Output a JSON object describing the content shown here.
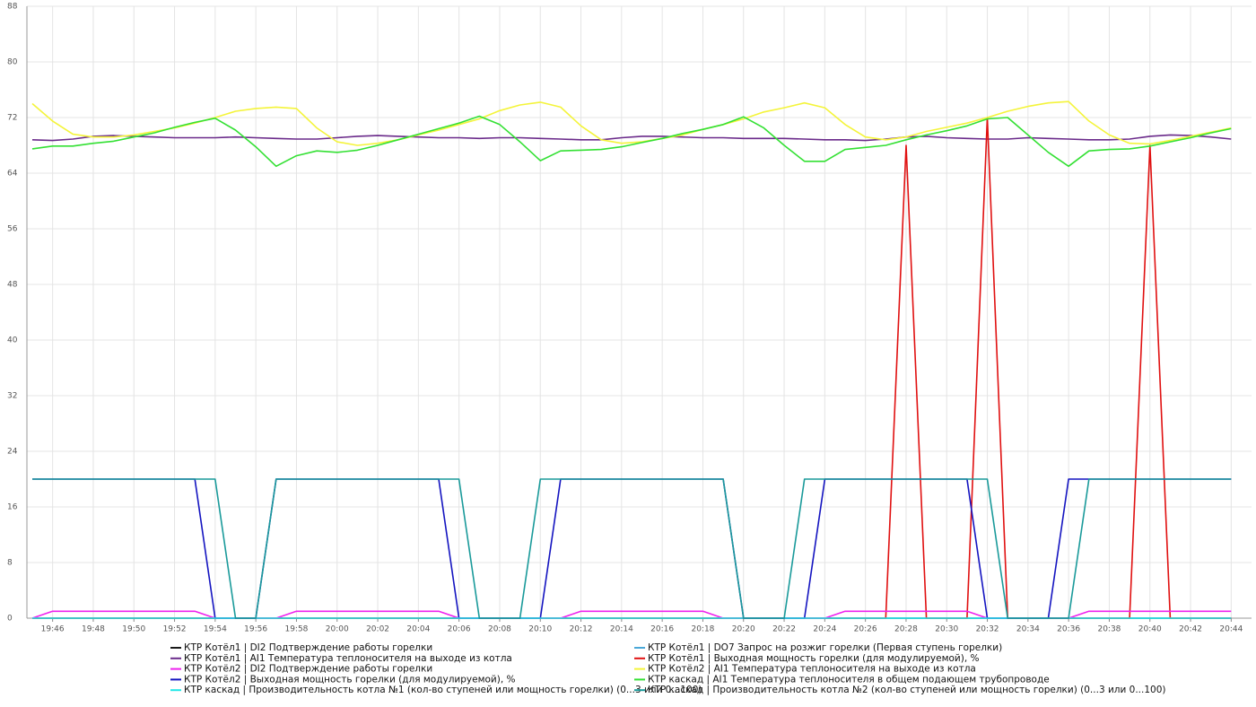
{
  "chart_data": {
    "type": "line",
    "x": [
      "19:45",
      "19:46",
      "19:47",
      "19:48",
      "19:49",
      "19:50",
      "19:51",
      "19:52",
      "19:53",
      "19:54",
      "19:55",
      "19:56",
      "19:57",
      "19:58",
      "19:59",
      "20:00",
      "20:01",
      "20:02",
      "20:03",
      "20:04",
      "20:05",
      "20:06",
      "20:07",
      "20:08",
      "20:09",
      "20:10",
      "20:11",
      "20:12",
      "20:13",
      "20:14",
      "20:15",
      "20:16",
      "20:17",
      "20:18",
      "20:19",
      "20:20",
      "20:21",
      "20:22",
      "20:23",
      "20:24",
      "20:25",
      "20:26",
      "20:27",
      "20:28",
      "20:29",
      "20:30",
      "20:31",
      "20:32",
      "20:33",
      "20:34",
      "20:35",
      "20:36",
      "20:37",
      "20:38",
      "20:39",
      "20:40",
      "20:41",
      "20:42",
      "20:43",
      "20:44"
    ],
    "xlim": [
      "19:45",
      "20:45"
    ],
    "xticks": [
      "19:46",
      "19:48",
      "19:50",
      "19:52",
      "19:54",
      "19:56",
      "19:58",
      "20:00",
      "20:02",
      "20:04",
      "20:06",
      "20:08",
      "20:10",
      "20:12",
      "20:14",
      "20:16",
      "20:18",
      "20:20",
      "20:22",
      "20:24",
      "20:26",
      "20:28",
      "20:30",
      "20:32",
      "20:34",
      "20:36",
      "20:38",
      "20:40",
      "20:42",
      "20:44"
    ],
    "ylim": [
      0,
      88
    ],
    "yticks": [
      0,
      8,
      16,
      24,
      32,
      40,
      48,
      56,
      64,
      72,
      80,
      88
    ],
    "grid": true,
    "legend": "bottom",
    "series": [
      {
        "name": "КТР Котёл1 | DI2 Подтверждение работы горелки",
        "color": "#1a1a1a",
        "values": [
          0,
          0,
          0,
          0,
          0,
          0,
          0,
          0,
          0,
          0,
          0,
          0,
          0,
          0,
          0,
          0,
          0,
          0,
          0,
          0,
          0,
          0,
          0,
          0,
          0,
          0,
          0,
          0,
          0,
          0,
          0,
          0,
          0,
          0,
          0,
          0,
          0,
          0,
          0,
          0,
          0,
          0,
          0,
          0,
          0,
          0,
          0,
          0,
          0,
          0,
          0,
          0,
          0,
          0,
          0,
          0,
          0,
          0,
          0,
          0
        ]
      },
      {
        "name": "КТР Котёл1 | DO7 Запрос на розжиг горелки (Первая ступень горелки)",
        "color": "#4aa8d8",
        "values": [
          0,
          0,
          0,
          0,
          0,
          0,
          0,
          0,
          0,
          0,
          0,
          0,
          0,
          0,
          0,
          0,
          0,
          0,
          0,
          0,
          0,
          0,
          0,
          0,
          0,
          0,
          0,
          0,
          0,
          0,
          0,
          0,
          0,
          0,
          0,
          0,
          0,
          0,
          0,
          0,
          0,
          0,
          0,
          0,
          0,
          0,
          0,
          0,
          0,
          0,
          0,
          0,
          0,
          0,
          0,
          0,
          0,
          0,
          0,
          0
        ]
      },
      {
        "name": "КТР Котёл1 | AI1 Температура теплоносителя на выходе из котла",
        "color": "#6a2a8a",
        "values": [
          68.8,
          68.7,
          68.9,
          69.3,
          69.4,
          69.3,
          69.2,
          69.1,
          69.1,
          69.1,
          69.2,
          69.1,
          69,
          68.9,
          68.9,
          69.1,
          69.3,
          69.4,
          69.3,
          69.2,
          69.1,
          69.1,
          69,
          69.1,
          69.1,
          69,
          68.9,
          68.8,
          68.8,
          69.1,
          69.3,
          69.3,
          69.2,
          69.1,
          69.1,
          69,
          69,
          69,
          68.9,
          68.8,
          68.8,
          68.7,
          68.9,
          69.2,
          69.3,
          69.1,
          69,
          68.9,
          68.9,
          69.1,
          69,
          68.9,
          68.8,
          68.8,
          68.9,
          69.3,
          69.5,
          69.4,
          69.2,
          68.9
        ]
      },
      {
        "name": "КТР Котёл1 | Выходная мощность горелки (для модулируемой), %",
        "color": "#e01010",
        "values": [
          0,
          0,
          0,
          0,
          0,
          0,
          0,
          0,
          0,
          0,
          0,
          0,
          0,
          0,
          0,
          0,
          0,
          0,
          0,
          0,
          0,
          0,
          0,
          0,
          0,
          0,
          0,
          0,
          0,
          0,
          0,
          0,
          0,
          0,
          0,
          0,
          0,
          0,
          0,
          0,
          0,
          0,
          0,
          68,
          0,
          0,
          0,
          72,
          0,
          0,
          0,
          0,
          0,
          0,
          0,
          68,
          0,
          0,
          0,
          0
        ]
      },
      {
        "name": "КТР Котёл2 | DI2 Подтверждение работы горелки",
        "color": "#ee22ee",
        "values": [
          0,
          1,
          1,
          1,
          1,
          1,
          1,
          1,
          1,
          0,
          0,
          0,
          0,
          1,
          1,
          1,
          1,
          1,
          1,
          1,
          1,
          0,
          0,
          0,
          0,
          0,
          0,
          1,
          1,
          1,
          1,
          1,
          1,
          1,
          0,
          0,
          0,
          0,
          0,
          0,
          1,
          1,
          1,
          1,
          1,
          1,
          1,
          0,
          0,
          0,
          0,
          0,
          1,
          1,
          1,
          1,
          1,
          1,
          1,
          1
        ]
      },
      {
        "name": "КТР Котёл2 | AI1 Температура теплоносителя на выходе из котла",
        "color": "#f4f43a",
        "values": [
          74,
          71.5,
          69.6,
          69.2,
          69.2,
          69.5,
          70,
          70.5,
          71.2,
          72,
          72.9,
          73.3,
          73.5,
          73.3,
          70.5,
          68.5,
          68,
          68.3,
          68.8,
          69.5,
          70.2,
          71,
          71.8,
          73,
          73.8,
          74.2,
          73.5,
          70.8,
          68.8,
          68.3,
          68.5,
          69,
          69.5,
          70.3,
          71,
          71.8,
          72.8,
          73.4,
          74.1,
          73.4,
          71,
          69.2,
          68.8,
          69.2,
          70,
          70.6,
          71.2,
          72,
          72.9,
          73.6,
          74.1,
          74.3,
          71.5,
          69.5,
          68.3,
          68.2,
          68.7,
          69.3,
          69.9,
          70.5
        ]
      },
      {
        "name": "КТР Котёл2 | Выходная мощность горелки (для модулируемой), %",
        "color": "#1414c0",
        "values": [
          20,
          20,
          20,
          20,
          20,
          20,
          20,
          20,
          20,
          0,
          0,
          0,
          20,
          20,
          20,
          20,
          20,
          20,
          20,
          20,
          20,
          0,
          0,
          0,
          0,
          0,
          20,
          20,
          20,
          20,
          20,
          20,
          20,
          20,
          20,
          0,
          0,
          0,
          0,
          20,
          20,
          20,
          20,
          20,
          20,
          20,
          20,
          0,
          0,
          0,
          0,
          20,
          20,
          20,
          20,
          20,
          20,
          20,
          20,
          20
        ]
      },
      {
        "name": "КТР каскад | AI1 Температура теплоносителя в общем подающем трубопроводе",
        "color": "#33e033",
        "values": [
          67.5,
          67.9,
          67.9,
          68.3,
          68.6,
          69.2,
          69.8,
          70.6,
          71.3,
          71.9,
          70.2,
          67.8,
          65,
          66.5,
          67.2,
          67,
          67.3,
          68,
          68.8,
          69.6,
          70.4,
          71.2,
          72.2,
          71,
          68.5,
          65.8,
          67.2,
          67.3,
          67.4,
          67.8,
          68.4,
          69,
          69.7,
          70.3,
          71,
          72.1,
          70.5,
          68,
          65.7,
          65.7,
          67.4,
          67.7,
          68,
          68.8,
          69.5,
          70.1,
          70.8,
          71.8,
          72,
          69.5,
          67,
          65,
          67.2,
          67.4,
          67.5,
          67.9,
          68.5,
          69.1,
          69.8,
          70.4
        ]
      },
      {
        "name": "КТР каскад | Производительность котла №1 (кол-во ступеней или мощность горелки) (0...3 или 0...100)",
        "color": "#22e8e8",
        "values": [
          0,
          0,
          0,
          0,
          0,
          0,
          0,
          0,
          0,
          0,
          0,
          0,
          0,
          0,
          0,
          0,
          0,
          0,
          0,
          0,
          0,
          0,
          0,
          0,
          0,
          0,
          0,
          0,
          0,
          0,
          0,
          0,
          0,
          0,
          0,
          0,
          0,
          0,
          0,
          0,
          0,
          0,
          0,
          0,
          0,
          0,
          0,
          0,
          0,
          0,
          0,
          0,
          0,
          0,
          0,
          0,
          0,
          0,
          0,
          0
        ]
      },
      {
        "name": "КТР каскад | Производительность котла №2 (кол-во ступеней или мощность горелки) (0...3 или 0...100)",
        "color": "#1a9a9a",
        "values": [
          20,
          20,
          20,
          20,
          20,
          20,
          20,
          20,
          20,
          20,
          0,
          0,
          20,
          20,
          20,
          20,
          20,
          20,
          20,
          20,
          20,
          20,
          0,
          0,
          0,
          20,
          20,
          20,
          20,
          20,
          20,
          20,
          20,
          20,
          20,
          0,
          0,
          0,
          20,
          20,
          20,
          20,
          20,
          20,
          20,
          20,
          20,
          20,
          0,
          0,
          0,
          0,
          20,
          20,
          20,
          20,
          20,
          20,
          20,
          20
        ]
      }
    ]
  }
}
